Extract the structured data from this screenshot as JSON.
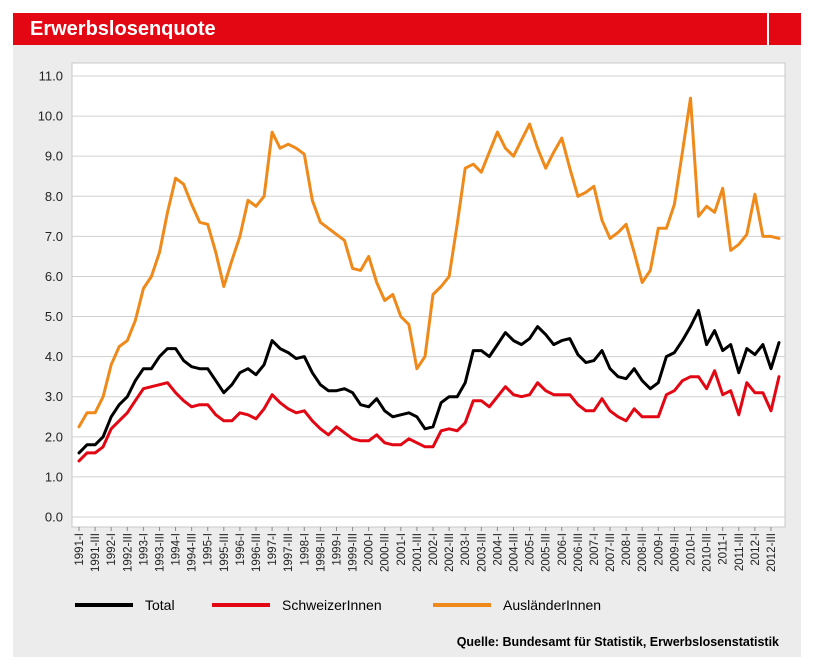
{
  "header": {
    "title": "Erwerbslosenquote"
  },
  "source": "Quelle: Bundesamt für Statistik, Erwerbslosenstatistik",
  "colors": {
    "accent": "#e30613",
    "total": "#000000",
    "schweizer": "#e30613",
    "auslaender": "#ef8a1a",
    "plot_bg": "#ffffff",
    "panel_bg": "#ececec"
  },
  "chart_data": {
    "type": "line",
    "title": "Erwerbslosenquote",
    "xlabel": "",
    "ylabel": "",
    "ylim": [
      0,
      11
    ],
    "yticks": [
      "0.0",
      "1.0",
      "2.0",
      "3.0",
      "4.0",
      "5.0",
      "6.0",
      "7.0",
      "8.0",
      "9.0",
      "10.0",
      "11.0"
    ],
    "legend_position": "bottom",
    "x_tick_labels": [
      "1991-I",
      "1991-III",
      "1992-I",
      "1992-III",
      "1993-I",
      "1993-III",
      "1994-I",
      "1994-III",
      "1995-I",
      "1995-III",
      "1996-I",
      "1996-III",
      "1997-I",
      "1997-III",
      "1998-I",
      "1998-III",
      "1999-I",
      "1999-III",
      "2000-I",
      "2000-III",
      "2001-I",
      "2001-III",
      "2002-I",
      "2002-III",
      "2003-I",
      "2003-III",
      "2004-I",
      "2004-III",
      "2005-I",
      "2005-III",
      "2006-I",
      "2006-III",
      "2007-I",
      "2007-III",
      "2008-I",
      "2008-III",
      "2009-I",
      "2009-III",
      "2010-I",
      "2010-III",
      "2011-I",
      "2011-III",
      "2012-I",
      "2012-III"
    ],
    "series": [
      {
        "name": "Total",
        "values": [
          1.6,
          1.8,
          1.8,
          2.0,
          2.5,
          2.8,
          3.0,
          3.4,
          3.7,
          3.7,
          4.0,
          4.2,
          4.2,
          3.9,
          3.75,
          3.7,
          3.7,
          3.4,
          3.1,
          3.3,
          3.6,
          3.7,
          3.55,
          3.8,
          4.4,
          4.2,
          4.1,
          3.95,
          4.0,
          3.6,
          3.3,
          3.15,
          3.15,
          3.2,
          3.1,
          2.8,
          2.75,
          2.95,
          2.65,
          2.5,
          2.55,
          2.6,
          2.5,
          2.2,
          2.25,
          2.85,
          3.0,
          3.0,
          3.35,
          4.15,
          4.15,
          4.0,
          4.3,
          4.6,
          4.4,
          4.3,
          4.45,
          4.75,
          4.55,
          4.3,
          4.4,
          4.45,
          4.05,
          3.85,
          3.9,
          4.15,
          3.7,
          3.5,
          3.45,
          3.7,
          3.4,
          3.2,
          3.35,
          4.0,
          4.1,
          4.4,
          4.75,
          5.15,
          4.3,
          4.65,
          4.15,
          4.3,
          3.6,
          4.2,
          4.05,
          4.3,
          3.7,
          4.35
        ]
      },
      {
        "name": "SchweizerInnen",
        "values": [
          1.4,
          1.6,
          1.6,
          1.75,
          2.2,
          2.4,
          2.6,
          2.9,
          3.2,
          3.25,
          3.3,
          3.35,
          3.1,
          2.9,
          2.75,
          2.8,
          2.8,
          2.55,
          2.4,
          2.4,
          2.6,
          2.55,
          2.45,
          2.7,
          3.05,
          2.85,
          2.7,
          2.6,
          2.65,
          2.4,
          2.2,
          2.05,
          2.25,
          2.1,
          1.95,
          1.9,
          1.9,
          2.05,
          1.85,
          1.8,
          1.8,
          1.95,
          1.85,
          1.75,
          1.75,
          2.15,
          2.2,
          2.15,
          2.35,
          2.9,
          2.9,
          2.75,
          3.0,
          3.25,
          3.05,
          3.0,
          3.05,
          3.35,
          3.15,
          3.05,
          3.05,
          3.05,
          2.8,
          2.65,
          2.65,
          2.95,
          2.65,
          2.5,
          2.4,
          2.7,
          2.5,
          2.5,
          2.5,
          3.05,
          3.15,
          3.4,
          3.5,
          3.5,
          3.2,
          3.65,
          3.05,
          3.15,
          2.55,
          3.35,
          3.1,
          3.1,
          2.65,
          3.5
        ]
      },
      {
        "name": "AusländerInnen",
        "values": [
          2.25,
          2.6,
          2.6,
          3.0,
          3.8,
          4.25,
          4.4,
          4.9,
          5.7,
          6.0,
          6.6,
          7.6,
          8.45,
          8.3,
          7.8,
          7.35,
          7.3,
          6.6,
          5.75,
          6.4,
          7.0,
          7.9,
          7.75,
          8.0,
          9.6,
          9.2,
          9.3,
          9.2,
          9.05,
          7.9,
          7.35,
          7.2,
          7.05,
          6.9,
          6.2,
          6.15,
          6.5,
          5.85,
          5.4,
          5.55,
          5.0,
          4.8,
          3.7,
          4.0,
          5.55,
          5.75,
          6.0,
          7.3,
          8.7,
          8.8,
          8.6,
          9.1,
          9.6,
          9.2,
          9.0,
          9.4,
          9.8,
          9.2,
          8.7,
          9.1,
          9.45,
          8.7,
          8.0,
          8.1,
          8.25,
          7.4,
          6.95,
          7.1,
          7.3,
          6.6,
          5.85,
          6.15,
          7.2,
          7.2,
          7.8,
          9.1,
          10.45,
          7.5,
          7.75,
          7.6,
          8.2,
          6.65,
          6.8,
          7.05,
          8.05,
          7.0,
          7.0,
          6.95
        ]
      }
    ]
  }
}
